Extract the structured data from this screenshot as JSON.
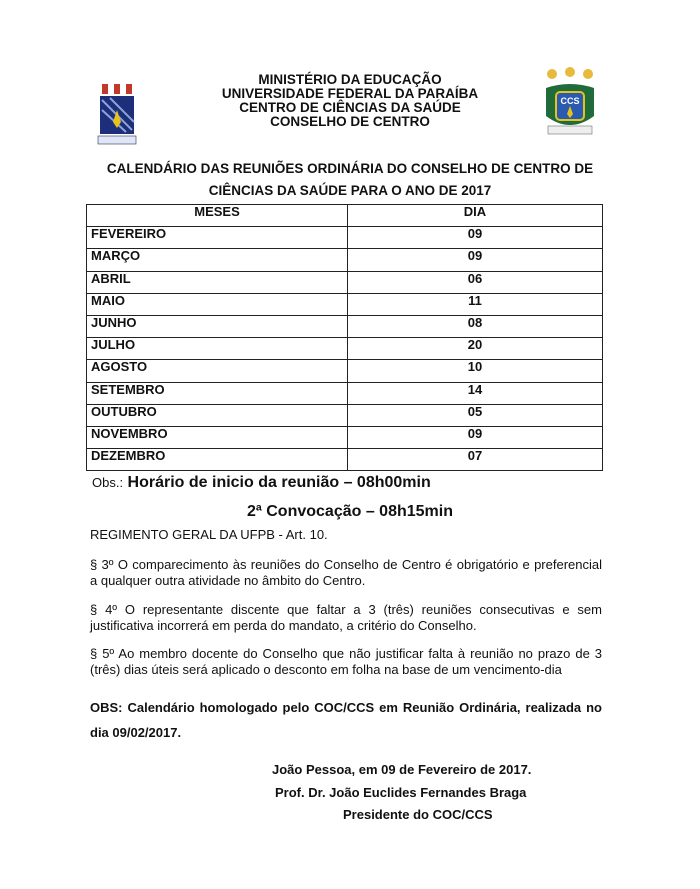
{
  "header": {
    "lines": [
      "MINISTÉRIO DA EDUCAÇÃO",
      "UNIVERSIDADE FEDERAL DA PARAÍBA",
      "CENTRO DE CIÊNCIAS DA SAÚDE",
      "CONSELHO DE CENTRO"
    ],
    "left_logo": "UFPB",
    "right_logo": "CCS"
  },
  "title": [
    "CALENDÁRIO DAS REUNIÕES ORDINÁRIA DO CONSELHO DE CENTRO DE",
    "CIÊNCIAS DA SAÚDE PARA O ANO DE 2017"
  ],
  "table": {
    "headers": [
      "MESES",
      "DIA"
    ],
    "rows": [
      [
        "FEVEREIRO",
        "09"
      ],
      [
        "MARÇO",
        "09"
      ],
      [
        "ABRIL",
        "06"
      ],
      [
        "MAIO",
        "11"
      ],
      [
        "JUNHO",
        "08"
      ],
      [
        "JULHO",
        "20"
      ],
      [
        "AGOSTO",
        "10"
      ],
      [
        "SETEMBRO",
        "14"
      ],
      [
        "OUTUBRO",
        "05"
      ],
      [
        "NOVEMBRO",
        "09"
      ],
      [
        "DEZEMBRO",
        "07"
      ]
    ]
  },
  "obs_label": "Obs.:",
  "obs_start": "Horário de inicio da reunião – 08h00min",
  "second_call": "2ª Convocação – 08h15min",
  "regimento": "REGIMENTO GERAL DA UFPB -  Art. 10.",
  "paragraphs": [
    "§ 3º O comparecimento às reuniões do Conselho de Centro é obrigatório e preferencial a qualquer outra atividade no âmbito do Centro.",
    "§ 4º O representante discente que faltar a 3 (três) reuniões consecutivas e sem justificativa incorrerá em  perda do mandato, a critério do Conselho.",
    "§ 5º Ao membro docente do Conselho que não justificar falta à reunião no prazo de 3 (três) dias úteis será aplicado o desconto em folha na base de um vencimento-dia"
  ],
  "obs_final": "OBS: Calendário homologado pelo COC/CCS em Reunião Ordinária, realizada no dia 09/02/2017.",
  "signature": {
    "place_date": "João Pessoa, em  09  de  Fevereiro de 2017.",
    "name": "Prof. Dr. João Euclides Fernandes Braga",
    "role": "Presidente do COC/CCS"
  }
}
